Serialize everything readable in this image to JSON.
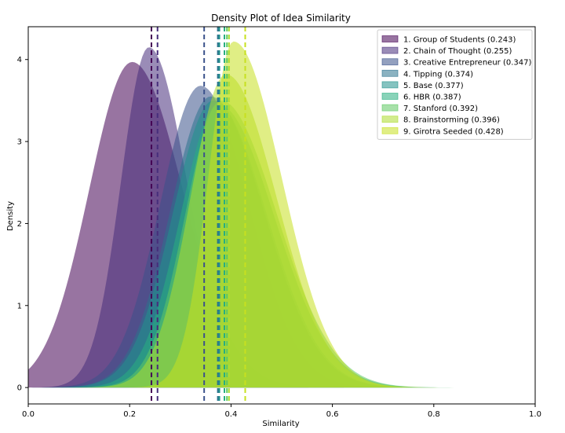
{
  "chart_data": {
    "type": "area",
    "title": "Density Plot of Idea Similarity",
    "xlabel": "Similarity",
    "ylabel": "Density",
    "xlim": [
      0,
      1.0
    ],
    "ylim": [
      -0.2,
      4.4
    ],
    "xticks": [
      "0.0",
      "0.2",
      "0.4",
      "0.6",
      "0.8",
      "1.0"
    ],
    "yticks": [
      "0",
      "1",
      "2",
      "3",
      "4"
    ],
    "grid": false,
    "legend_position": "top-right",
    "series": [
      {
        "name": "1. Group of Students (0.243)",
        "mean": 0.243,
        "peak": 0.205,
        "peak_density": 3.97,
        "sd_left": 0.085,
        "sd_right": 0.1,
        "color": "#440154"
      },
      {
        "name": "2. Chain of Thought (0.255)",
        "mean": 0.255,
        "peak": 0.238,
        "peak_density": 4.15,
        "sd_left": 0.055,
        "sd_right": 0.075,
        "color": "#472d7b"
      },
      {
        "name": "3. Creative Entrepreneur (0.347)",
        "mean": 0.347,
        "peak": 0.34,
        "peak_density": 3.68,
        "sd_left": 0.08,
        "sd_right": 0.095,
        "color": "#3b528b"
      },
      {
        "name": "4. Tipping (0.374)",
        "mean": 0.374,
        "peak": 0.36,
        "peak_density": 3.55,
        "sd_left": 0.08,
        "sd_right": 0.105,
        "color": "#2c728e"
      },
      {
        "name": "5. Base (0.377)",
        "mean": 0.377,
        "peak": 0.365,
        "peak_density": 3.5,
        "sd_left": 0.08,
        "sd_right": 0.105,
        "color": "#21918c"
      },
      {
        "name": "6. HBR (0.387)",
        "mean": 0.387,
        "peak": 0.375,
        "peak_density": 3.45,
        "sd_left": 0.075,
        "sd_right": 0.11,
        "color": "#28ae80"
      },
      {
        "name": "7. Stanford (0.392)",
        "mean": 0.392,
        "peak": 0.38,
        "peak_density": 3.5,
        "sd_left": 0.07,
        "sd_right": 0.11,
        "color": "#5ec962"
      },
      {
        "name": "8. Brainstorming (0.396)",
        "mean": 0.396,
        "peak": 0.39,
        "peak_density": 3.82,
        "sd_left": 0.07,
        "sd_right": 0.1,
        "color": "#addc30"
      },
      {
        "name": "9. Girotra Seeded (0.428)",
        "mean": 0.428,
        "peak": 0.405,
        "peak_density": 4.22,
        "sd_left": 0.05,
        "sd_right": 0.095,
        "color": "#c7e020"
      }
    ]
  }
}
